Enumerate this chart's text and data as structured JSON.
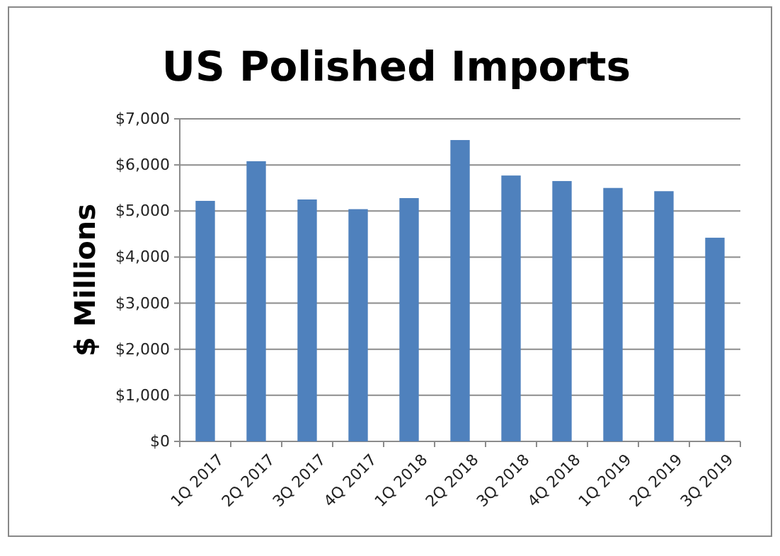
{
  "chart_data": {
    "type": "bar",
    "title": "US Polished Imports",
    "ylabel": "$ Millions",
    "categories": [
      "1Q 2017",
      "2Q 2017",
      "3Q 2017",
      "4Q 2017",
      "1Q 2018",
      "2Q 2018",
      "3Q 2018",
      "4Q 2018",
      "1Q 2019",
      "2Q 2019",
      "3Q 2019"
    ],
    "values": [
      5220,
      6080,
      5250,
      5040,
      5280,
      6540,
      5770,
      5650,
      5500,
      5430,
      4420
    ],
    "color": "#4f81bd",
    "ylim": [
      0,
      7000
    ],
    "yticks": [
      {
        "value": 0,
        "label": "$0"
      },
      {
        "value": 1000,
        "label": "$1,000"
      },
      {
        "value": 2000,
        "label": "$2,000"
      },
      {
        "value": 3000,
        "label": "$3,000"
      },
      {
        "value": 4000,
        "label": "$4,000"
      },
      {
        "value": 5000,
        "label": "$5,000"
      },
      {
        "value": 6000,
        "label": "$6,000"
      },
      {
        "value": 7000,
        "label": "$7,000"
      }
    ],
    "grid": "y"
  }
}
